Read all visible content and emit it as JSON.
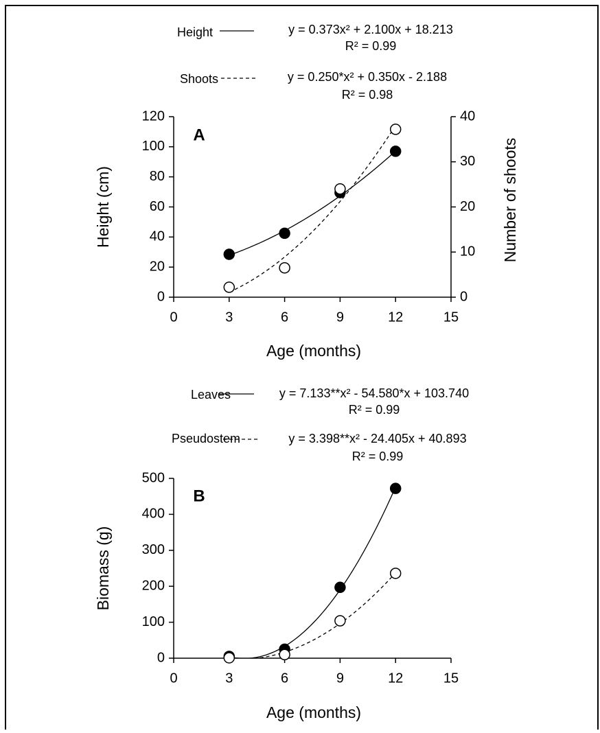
{
  "chart_data": [
    {
      "type": "scatter",
      "label": "A",
      "x_label": "Age (months)",
      "y_label": "Height (cm)",
      "y2_label": "Number of shoots",
      "x": [
        3,
        6,
        9,
        12
      ],
      "xlim": [
        0,
        15
      ],
      "xticks": [
        0,
        3,
        6,
        9,
        12,
        15
      ],
      "ylim": [
        0,
        120
      ],
      "yticks": [
        0,
        20,
        40,
        60,
        80,
        100,
        120
      ],
      "y2lim": [
        0,
        40
      ],
      "y2ticks": [
        0,
        10,
        20,
        30,
        40
      ],
      "series": [
        {
          "name": "Height",
          "marker": "filled",
          "line": "solid",
          "values": [
            28.5,
            42.5,
            69.5,
            97
          ],
          "equation": "y = 0.373x² + 2.100x + 18.213",
          "r2": "R² = 0.99",
          "coefficients": [
            0.373,
            2.1,
            18.213
          ]
        },
        {
          "name": "Shoots",
          "marker": "open",
          "line": "dashed",
          "axis": "y2",
          "values": [
            2.2,
            6.5,
            24,
            37.2
          ],
          "equation": "y = 0.250*x² + 0.350x - 2.188",
          "r2": "R² = 0.98",
          "coefficients": [
            0.25,
            0.35,
            -2.188
          ]
        }
      ]
    },
    {
      "type": "scatter",
      "label": "B",
      "x_label": "Age (months)",
      "y_label": "Biomass (g)",
      "x": [
        3,
        6,
        9,
        12
      ],
      "xlim": [
        0,
        15
      ],
      "xticks": [
        0,
        3,
        6,
        9,
        12,
        15
      ],
      "ylim": [
        0,
        500
      ],
      "yticks": [
        0,
        100,
        200,
        300,
        400,
        500
      ],
      "series": [
        {
          "name": "Leaves",
          "marker": "filled",
          "line": "solid",
          "values": [
            5,
            25,
            197,
            472
          ],
          "equation": "y = 7.133**x² - 54.580*x + 103.740",
          "r2": "R² = 0.99",
          "coefficients": [
            7.133,
            -54.58,
            103.74
          ]
        },
        {
          "name": "Pseudostem",
          "marker": "open",
          "line": "dashed",
          "values": [
            1,
            10,
            104,
            236
          ],
          "equation": "y = 3.398**x² - 24.405x + 40.893",
          "r2": "R² = 0.99",
          "coefficients": [
            3.398,
            -24.405,
            40.893
          ]
        }
      ]
    }
  ]
}
